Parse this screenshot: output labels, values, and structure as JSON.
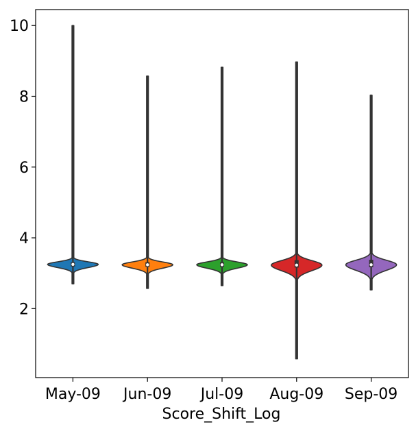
{
  "chart_data": {
    "type": "violin",
    "title": "",
    "xlabel": "Score_Shift_Log",
    "ylabel": "",
    "categories": [
      "May-09",
      "Jun-09",
      "Jul-09",
      "Aug-09",
      "Sep-09"
    ],
    "ylim": [
      0.05,
      10.45
    ],
    "yticks": [
      2,
      4,
      6,
      8,
      10
    ],
    "grid": false,
    "legend": "none",
    "series": [
      {
        "category": "May-09",
        "color": "#1f77b4",
        "min": 2.7,
        "max": 10.0,
        "q1": 3.19,
        "median": 3.25,
        "q3": 3.31
      },
      {
        "category": "Jun-09",
        "color": "#ff7f0e",
        "min": 2.57,
        "max": 8.57,
        "q1": 3.18,
        "median": 3.24,
        "q3": 3.31
      },
      {
        "category": "Jul-09",
        "color": "#2ca02c",
        "min": 2.65,
        "max": 8.82,
        "q1": 3.18,
        "median": 3.24,
        "q3": 3.31
      },
      {
        "category": "Aug-09",
        "color": "#d62728",
        "min": 0.58,
        "max": 8.97,
        "q1": 3.16,
        "median": 3.23,
        "q3": 3.37
      },
      {
        "category": "Sep-09",
        "color": "#9467bd",
        "min": 2.53,
        "max": 8.03,
        "q1": 3.17,
        "median": 3.24,
        "q3": 3.38
      }
    ]
  }
}
